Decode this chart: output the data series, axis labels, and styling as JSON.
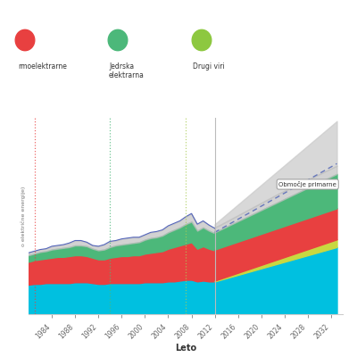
{
  "xlabel": "Leto",
  "ylabel": "o električne energije)",
  "years_hist": [
    1980,
    1981,
    1982,
    1983,
    1984,
    1985,
    1986,
    1987,
    1988,
    1989,
    1990,
    1991,
    1992,
    1993,
    1994,
    1995,
    1996,
    1997,
    1998,
    1999,
    2000,
    2001,
    2002,
    2003,
    2004,
    2005,
    2006,
    2007,
    2008,
    2009,
    2010,
    2011,
    2012
  ],
  "years_fut": [
    2012,
    2013,
    2014,
    2015,
    2016,
    2017,
    2018,
    2019,
    2020,
    2021,
    2022,
    2023,
    2024,
    2025,
    2026,
    2027,
    2028,
    2029,
    2030,
    2031,
    2032,
    2033
  ],
  "hist_cyan": [
    1.8,
    1.85,
    1.85,
    1.9,
    1.9,
    1.9,
    1.9,
    1.9,
    1.95,
    1.95,
    1.95,
    1.9,
    1.85,
    1.85,
    1.9,
    1.9,
    1.9,
    1.9,
    1.9,
    1.9,
    1.95,
    1.95,
    1.95,
    1.95,
    2.0,
    2.0,
    2.05,
    2.1,
    2.1,
    2.0,
    2.05,
    2.0,
    2.0
  ],
  "hist_red": [
    1.4,
    1.45,
    1.5,
    1.5,
    1.55,
    1.6,
    1.6,
    1.65,
    1.65,
    1.65,
    1.6,
    1.55,
    1.5,
    1.5,
    1.55,
    1.6,
    1.65,
    1.65,
    1.7,
    1.7,
    1.75,
    1.8,
    1.85,
    1.9,
    2.0,
    2.1,
    2.15,
    2.2,
    2.3,
    2.0,
    2.1,
    2.0,
    1.9
  ],
  "hist_green": [
    0.4,
    0.4,
    0.45,
    0.45,
    0.5,
    0.5,
    0.55,
    0.55,
    0.6,
    0.6,
    0.6,
    0.55,
    0.55,
    0.6,
    0.65,
    0.7,
    0.7,
    0.75,
    0.75,
    0.8,
    0.85,
    0.9,
    0.9,
    0.95,
    1.0,
    1.05,
    1.1,
    1.2,
    1.25,
    1.1,
    1.15,
    1.1,
    1.05
  ],
  "hist_lgray": [
    0.15,
    0.15,
    0.15,
    0.15,
    0.2,
    0.2,
    0.2,
    0.25,
    0.3,
    0.3,
    0.25,
    0.2,
    0.25,
    0.3,
    0.35,
    0.3,
    0.35,
    0.35,
    0.35,
    0.3,
    0.3,
    0.35,
    0.35,
    0.35,
    0.4,
    0.4,
    0.4,
    0.45,
    0.5,
    0.4,
    0.4,
    0.35,
    0.3
  ],
  "fut_cyan": [
    2.0,
    2.1,
    2.2,
    2.3,
    2.4,
    2.5,
    2.6,
    2.7,
    2.8,
    2.9,
    3.0,
    3.1,
    3.2,
    3.3,
    3.4,
    3.5,
    3.6,
    3.7,
    3.8,
    3.9,
    4.0,
    4.1
  ],
  "fut_yellow": [
    0.05,
    0.07,
    0.09,
    0.11,
    0.13,
    0.15,
    0.17,
    0.19,
    0.21,
    0.23,
    0.25,
    0.27,
    0.29,
    0.31,
    0.33,
    0.35,
    0.37,
    0.39,
    0.41,
    0.43,
    0.45,
    0.47
  ],
  "fut_red": [
    1.9,
    1.9,
    1.9,
    1.9,
    1.9,
    1.9,
    1.9,
    1.9,
    1.9,
    1.9,
    1.9,
    1.9,
    1.9,
    1.9,
    1.9,
    1.9,
    1.9,
    1.9,
    1.9,
    1.9,
    1.9,
    1.9
  ],
  "fut_green": [
    1.05,
    1.1,
    1.15,
    1.2,
    1.25,
    1.3,
    1.35,
    1.4,
    1.45,
    1.5,
    1.55,
    1.6,
    1.65,
    1.7,
    1.75,
    1.8,
    1.85,
    1.9,
    1.95,
    2.0,
    2.05,
    2.1
  ],
  "fut_lgray": [
    0.3,
    0.3,
    0.32,
    0.34,
    0.36,
    0.38,
    0.4,
    0.42,
    0.44,
    0.46,
    0.48,
    0.5,
    0.5,
    0.5,
    0.5,
    0.5,
    0.5,
    0.5,
    0.5,
    0.5,
    0.5,
    0.5
  ],
  "fut_upper": [
    5.5,
    5.8,
    6.1,
    6.4,
    6.7,
    7.0,
    7.3,
    7.6,
    7.9,
    8.2,
    8.5,
    8.8,
    9.1,
    9.4,
    9.7,
    10.0,
    10.3,
    10.6,
    10.9,
    11.2,
    11.5,
    11.8
  ],
  "fut_dotted": [
    5.0,
    5.2,
    5.4,
    5.6,
    5.8,
    6.0,
    6.2,
    6.4,
    6.6,
    6.8,
    7.0,
    7.2,
    7.4,
    7.6,
    7.8,
    8.0,
    8.2,
    8.4,
    8.6,
    8.8,
    9.0,
    9.2
  ],
  "color_cyan": "#00C0E0",
  "color_red": "#E84040",
  "color_green": "#4CB87A",
  "color_lgray": "#C0C0C0",
  "color_yellow": "#C8D840",
  "color_dotted": "#6677BB",
  "marker_red_x": 1981,
  "marker_green_x": 1994,
  "marker_drugiviri_x": 2007,
  "annotation_text": "Območje primarne",
  "xlim_left": 1980,
  "xlim_right": 2034,
  "ylim_bottom": 0,
  "ylim_top": 12,
  "xticks": [
    1984,
    1988,
    1992,
    1996,
    2000,
    2004,
    2008,
    2012,
    2016,
    2020,
    2024,
    2028,
    2032
  ],
  "split_year": 2012,
  "background_color": "#FFFFFF",
  "legend_items": [
    {
      "label": "rmoelektrarne",
      "color": "#E84040"
    },
    {
      "label": "Jedrska\nelektrarna",
      "color": "#4CB87A"
    },
    {
      "label": "Drugi viri",
      "color": "#8DC840"
    }
  ]
}
